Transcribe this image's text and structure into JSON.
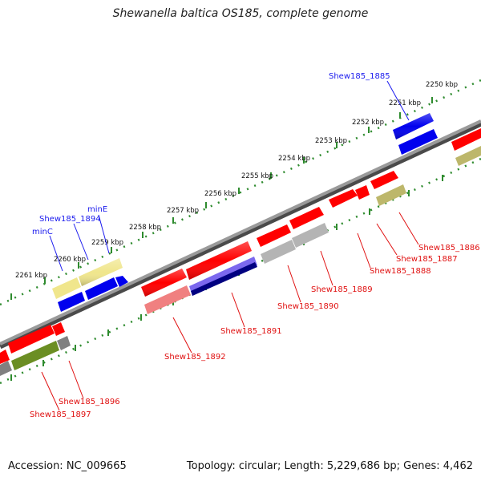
{
  "title": "Shewanella baltica OS185, complete genome",
  "footer": {
    "accession": "Accession: NC_009665",
    "summary": "Topology: circular; Length: 5,229,686 bp; Genes: 4,462"
  },
  "colors": {
    "backbone": "#808080",
    "ruler_dots": "#2e8b2e",
    "forward_label": "#1a1aee",
    "reverse_label": "#e01010",
    "gene_red": "#ff0000",
    "gene_blue": "#0000ee",
    "gene_pale_yellow": "#f0e68c",
    "gene_olive": "#6b8e23",
    "gene_khaki": "#bdb76b",
    "gene_gray": "#b4b4b4",
    "gene_pink": "#f08080",
    "gene_navy": "#000080",
    "gene_slate": "#7b68ee"
  },
  "ruler_ticks": [
    "2250 kbp",
    "2251 kbp",
    "2252 kbp",
    "2253 kbp",
    "2254 kbp",
    "2255 kbp",
    "2256 kbp",
    "2257 kbp",
    "2258 kbp",
    "2259 kbp",
    "2260 kbp",
    "2261 kbp"
  ],
  "forward_gene_labels": [
    "Shew185_1885",
    "Shew185_1894",
    "minE",
    "minC"
  ],
  "reverse_gene_labels": [
    "Shew185_1886",
    "Shew185_1887",
    "Shew185_1888",
    "Shew185_1889",
    "Shew185_1890",
    "Shew185_1891",
    "Shew185_1892",
    "Shew185_1896",
    "Shew185_1897"
  ]
}
